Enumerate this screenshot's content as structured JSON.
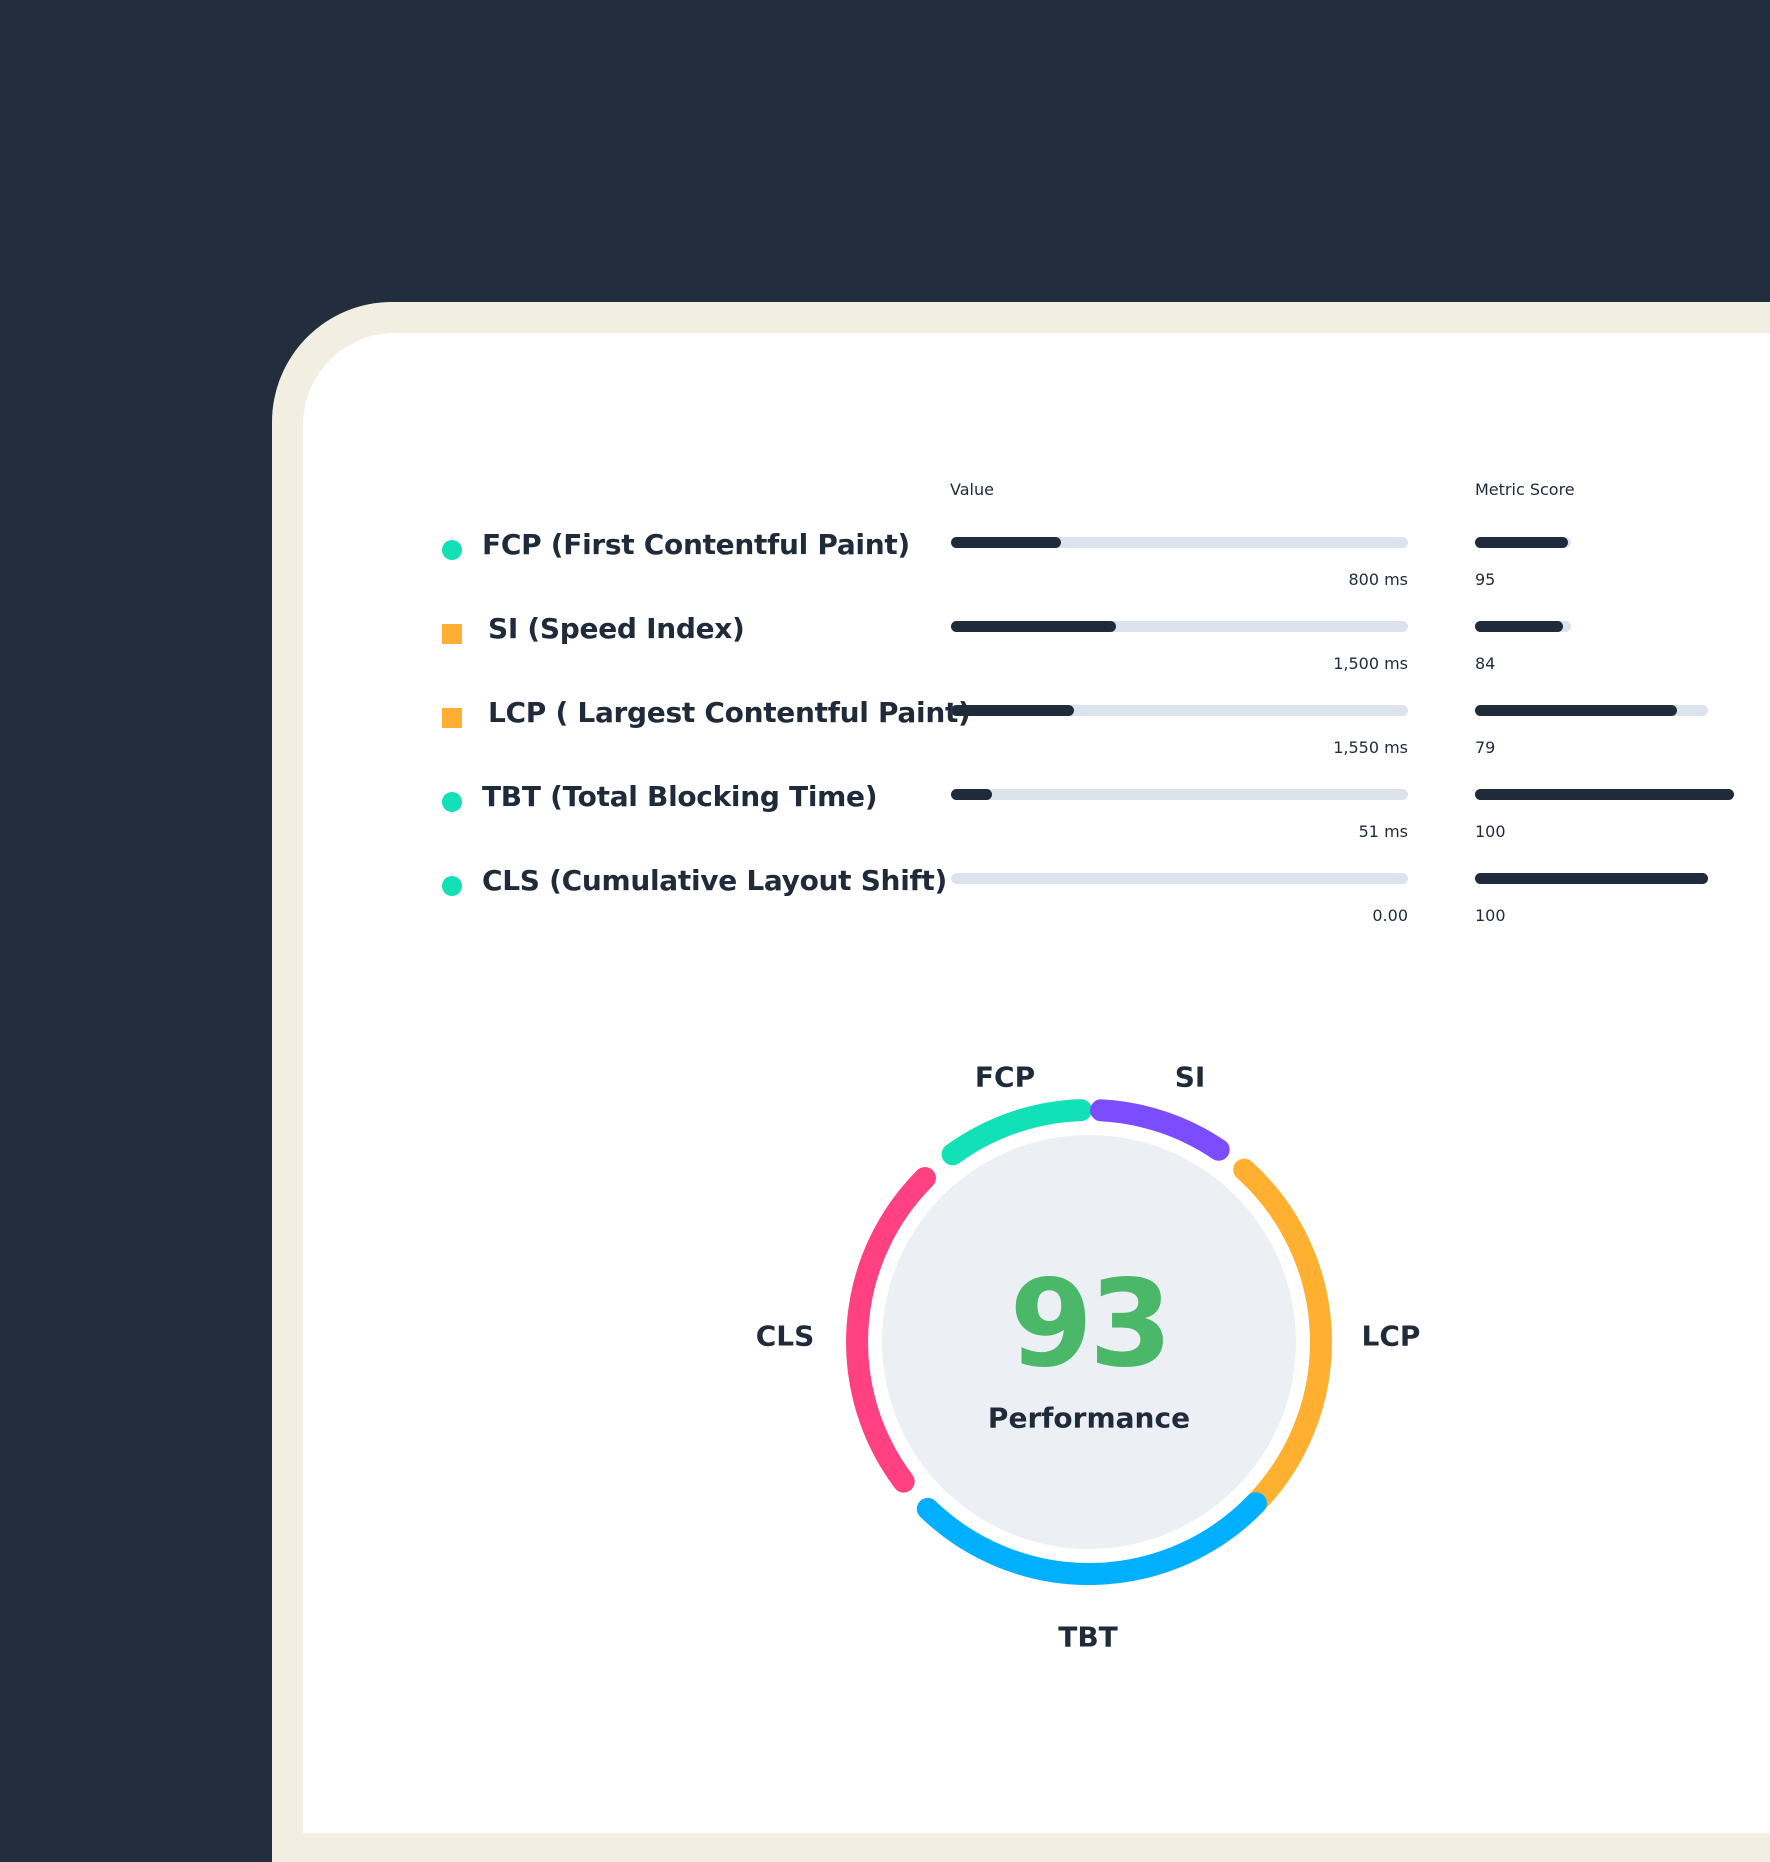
{
  "headers": {
    "value": "Value",
    "score": "Metric Score"
  },
  "colors": {
    "background": "#222e3e",
    "frame": "#f2eee2",
    "good": "#12e0b7",
    "average": "#ffad33",
    "score": "#4bb869",
    "bar": "#1f2a3a",
    "track": "#dde3ec"
  },
  "metrics": [
    {
      "label": "FCP (First Contentful Paint)",
      "marker": "dot",
      "status": "good",
      "value_text": "800 ms",
      "value_fraction": 0.24,
      "score_text": "95",
      "score_track_fraction": 0.37,
      "score_fill_fraction": 0.36
    },
    {
      "label": "SI (Speed Index)",
      "marker": "square",
      "status": "average",
      "value_text": "1,500 ms",
      "value_fraction": 0.36,
      "score_text": "84",
      "score_track_fraction": 0.37,
      "score_fill_fraction": 0.34
    },
    {
      "label": "LCP ( Largest Contentful Paint)",
      "marker": "square",
      "status": "average",
      "value_text": "1,550 ms",
      "value_fraction": 0.27,
      "score_text": "79",
      "score_track_fraction": 0.9,
      "score_fill_fraction": 0.78
    },
    {
      "label": "TBT (Total Blocking Time)",
      "marker": "dot",
      "status": "good",
      "value_text": "51 ms",
      "value_fraction": 0.09,
      "score_text": "100",
      "score_track_fraction": 1.0,
      "score_fill_fraction": 1.0
    },
    {
      "label": "CLS (Cumulative Layout Shift)",
      "marker": "dot",
      "status": "good",
      "value_text": "0.00",
      "value_fraction": 0.0,
      "score_text": "100",
      "score_track_fraction": 0.9,
      "score_fill_fraction": 0.9
    }
  ],
  "gauge": {
    "score": "93",
    "caption": "Performance",
    "segments": [
      {
        "label": "FCP",
        "color": "#12e0b7"
      },
      {
        "label": "SI",
        "color": "#7c4dff"
      },
      {
        "label": "LCP",
        "color": "#ffb030"
      },
      {
        "label": "TBT",
        "color": "#00b0ff"
      },
      {
        "label": "CLS",
        "color": "#ff4081"
      }
    ]
  }
}
